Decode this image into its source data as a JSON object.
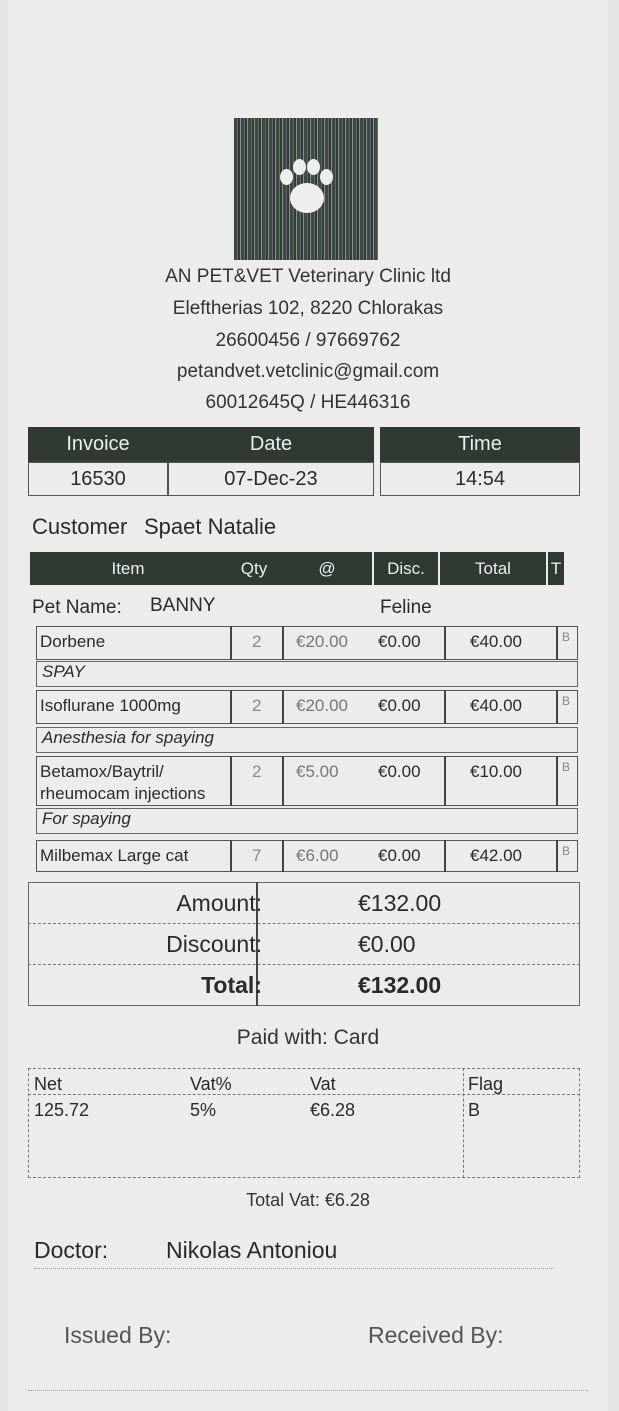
{
  "clinic": {
    "name": "AN PET&VET Veterinary Clinic ltd",
    "address": "Eleftherias 102, 8220 Chlorakas",
    "phones": "26600456 / 97669762",
    "email": "petandvet.vetclinic@gmail.com",
    "reg": "60012645Q / HE446316"
  },
  "invoice": {
    "invoice_label": "Invoice",
    "date_label": "Date",
    "time_label": "Time",
    "number": "16530",
    "date": "07-Dec-23",
    "time": "14:54"
  },
  "customer": {
    "label": "Customer",
    "name": "Spaet Natalie"
  },
  "columns": {
    "item": "Item",
    "qty": "Qty",
    "price": "@",
    "disc": "Disc.",
    "total": "Total",
    "tax": "T"
  },
  "pet": {
    "label": "Pet Name:",
    "name": "BANNY",
    "species": "Feline"
  },
  "items": [
    {
      "name": "Dorbene",
      "qty": "2",
      "price": "€20.00",
      "disc": "€0.00",
      "total": "€40.00",
      "flag": "B",
      "note": "SPAY"
    },
    {
      "name": "Isoflurane 1000mg",
      "qty": "2",
      "price": "€20.00",
      "disc": "€0.00",
      "total": "€40.00",
      "flag": "B",
      "note": "Anesthesia for spaying"
    },
    {
      "name": "Betamox/Baytril/",
      "name2": "rheumocam injections",
      "qty": "2",
      "price": "€5.00",
      "disc": "€0.00",
      "total": "€10.00",
      "flag": "B",
      "note": "For spaying"
    },
    {
      "name": "Milbemax Large cat",
      "qty": "7",
      "price": "€6.00",
      "disc": "€0.00",
      "total": "€42.00",
      "flag": "B"
    }
  ],
  "summary": {
    "amount_label": "Amount:",
    "amount": "€132.00",
    "discount_label": "Discount:",
    "discount": "€0.00",
    "total_label": "Total:",
    "total": "€132.00"
  },
  "payment": "Paid with: Card",
  "vat": {
    "headers": [
      "Net",
      "Vat%",
      "Vat",
      "Flag"
    ],
    "row": [
      "125.72",
      "5%",
      "€6.28",
      "B"
    ],
    "total": "Total Vat: €6.28"
  },
  "doctor": {
    "label": "Doctor:",
    "name": "Nikolas Antoniou"
  },
  "footer": {
    "issued": "Issued By:",
    "received": "Received By:"
  }
}
